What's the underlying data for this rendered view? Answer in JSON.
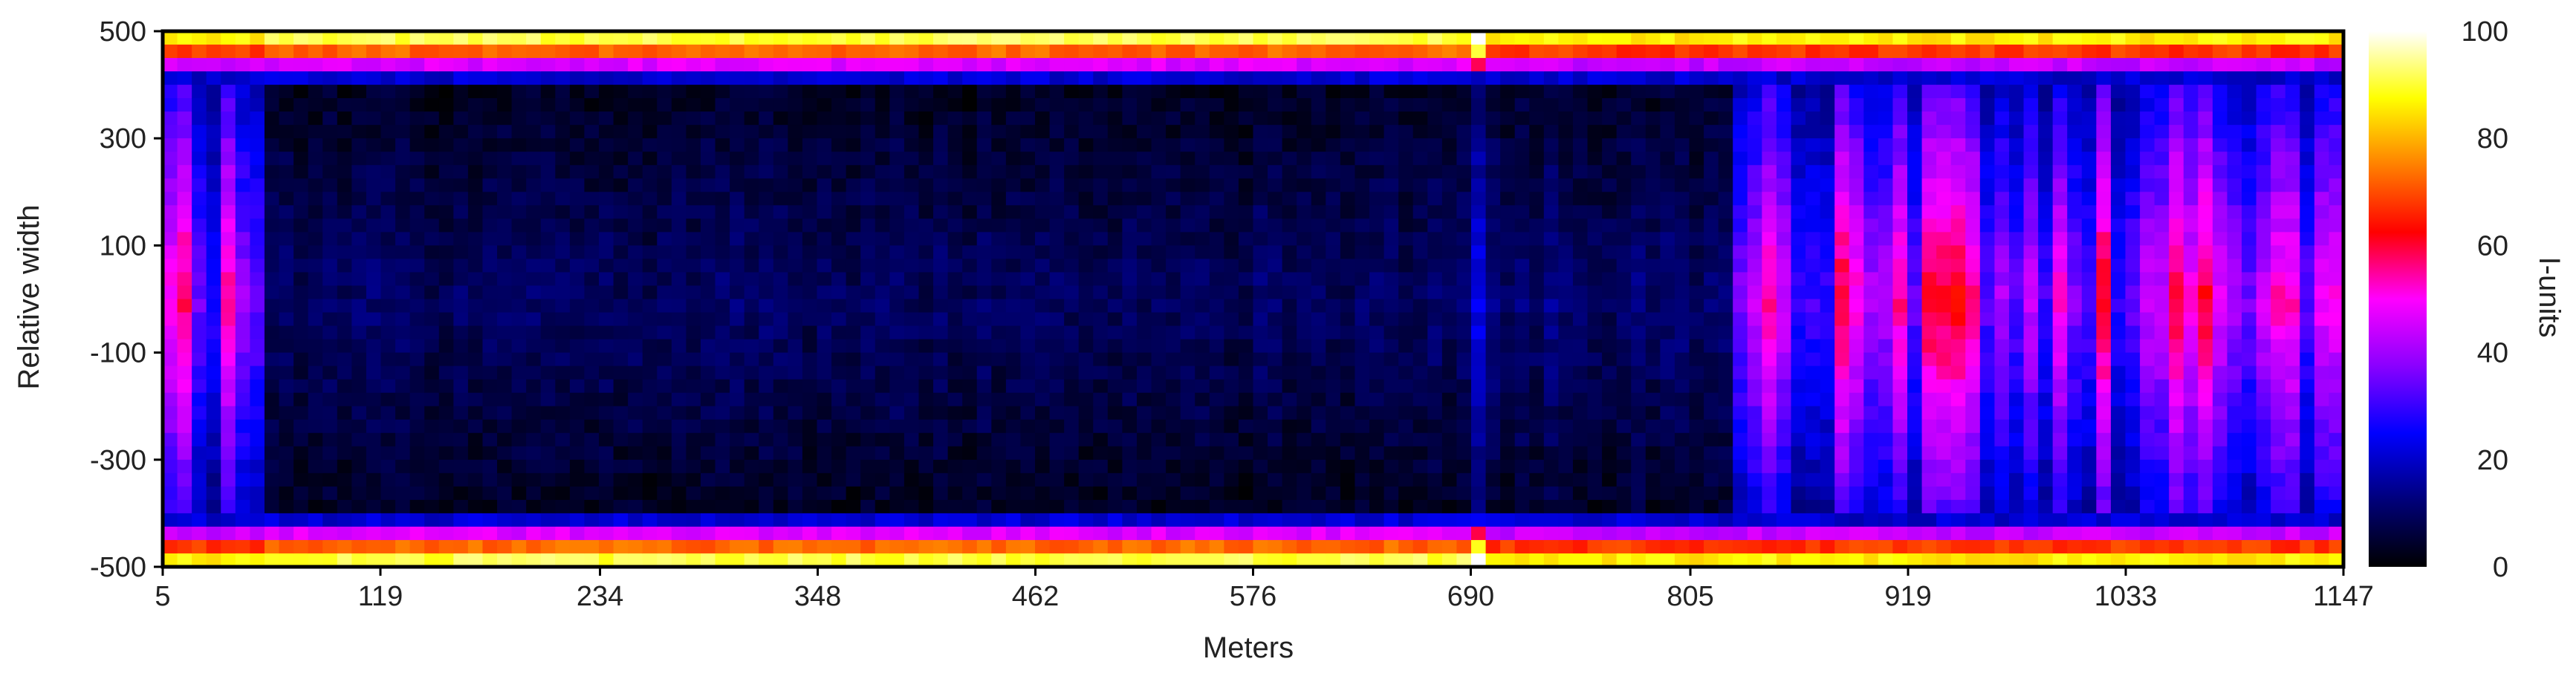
{
  "colors": {
    "colormap": [
      "#000000",
      "#00007a",
      "#0000ff",
      "#8a00ff",
      "#ff00ff",
      "#ff0000",
      "#ff8000",
      "#ffff00",
      "#ffffff"
    ],
    "frame": "#000000",
    "text": "#222222"
  },
  "chart_data": {
    "type": "heatmap",
    "title": "",
    "xlabel": "Meters",
    "ylabel": "Relative width",
    "colorbar_label": "I-units",
    "xlim": [
      5,
      1147
    ],
    "ylim": [
      -500,
      500
    ],
    "zlim": [
      0,
      100
    ],
    "x_ticks": [
      {
        "value": 5,
        "label": "5"
      },
      {
        "value": 119,
        "label": "119"
      },
      {
        "value": 234,
        "label": "234"
      },
      {
        "value": 348,
        "label": "348"
      },
      {
        "value": 462,
        "label": "462"
      },
      {
        "value": 576,
        "label": "576"
      },
      {
        "value": 690,
        "label": "690"
      },
      {
        "value": 805,
        "label": "805"
      },
      {
        "value": 919,
        "label": "919"
      },
      {
        "value": 1033,
        "label": "1033"
      },
      {
        "value": 1147,
        "label": "1147"
      }
    ],
    "y_ticks": [
      {
        "value": 500,
        "label": "500"
      },
      {
        "value": 300,
        "label": "300"
      },
      {
        "value": 100,
        "label": "100"
      },
      {
        "value": -100,
        "label": "-100"
      },
      {
        "value": -300,
        "label": "-300"
      },
      {
        "value": -500,
        "label": "-500"
      }
    ],
    "colorbar_ticks": [
      {
        "value": 100,
        "label": "100"
      },
      {
        "value": 80,
        "label": "80"
      },
      {
        "value": 60,
        "label": "60"
      },
      {
        "value": 40,
        "label": "40"
      },
      {
        "value": 20,
        "label": "20"
      },
      {
        "value": 0,
        "label": "0"
      }
    ],
    "profile": {
      "description_of_columns": "approximate intensity (I-units) per column: edge intensity near |width|=500 and center intensity near width=0",
      "x_segments": [
        {
          "x_range": [
            5,
            60
          ],
          "edge": 70,
          "center": 40
        },
        {
          "x_range": [
            60,
            690
          ],
          "edge": 75,
          "center": 4
        },
        {
          "x_range": [
            690,
            700
          ],
          "edge": 95,
          "center": 30
        },
        {
          "x_range": [
            700,
            830
          ],
          "edge": 70,
          "center": 6
        },
        {
          "x_range": [
            830,
            1147
          ],
          "edge": 70,
          "center": 40
        }
      ]
    }
  }
}
